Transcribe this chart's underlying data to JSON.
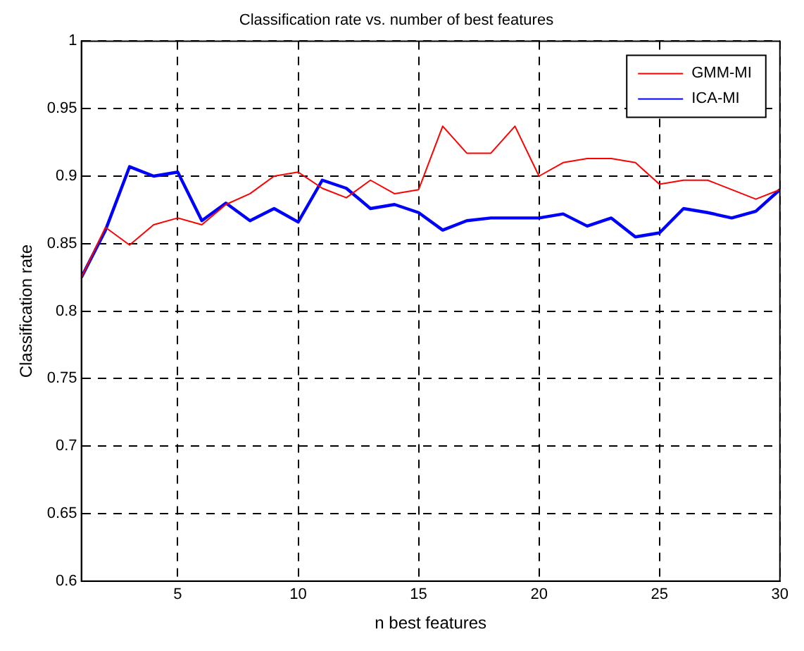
{
  "chart_data": {
    "type": "line",
    "title": "Classification rate vs. number of best features",
    "xlabel": "n best features",
    "ylabel": "Classification rate",
    "x": [
      1,
      2,
      3,
      4,
      5,
      6,
      7,
      8,
      9,
      10,
      11,
      12,
      13,
      14,
      15,
      16,
      17,
      18,
      19,
      20,
      21,
      22,
      23,
      24,
      25,
      26,
      27,
      28,
      29,
      30
    ],
    "series": [
      {
        "name": "GMM-MI",
        "color": "#ff0000",
        "values": [
          0.825,
          0.862,
          0.849,
          0.864,
          0.869,
          0.864,
          0.879,
          0.887,
          0.9,
          0.903,
          0.891,
          0.884,
          0.897,
          0.887,
          0.89,
          0.937,
          0.917,
          0.917,
          0.937,
          0.9,
          0.91,
          0.913,
          0.913,
          0.91,
          0.894,
          0.897,
          0.897,
          0.89,
          0.883,
          0.89
        ]
      },
      {
        "name": "ICA-MI",
        "color": "#0000ff",
        "values": [
          0.825,
          0.86,
          0.907,
          0.9,
          0.903,
          0.867,
          0.88,
          0.867,
          0.876,
          0.866,
          0.897,
          0.891,
          0.876,
          0.879,
          0.873,
          0.86,
          0.867,
          0.869,
          0.869,
          0.869,
          0.872,
          0.863,
          0.869,
          0.855,
          0.858,
          0.876,
          0.873,
          0.869,
          0.874,
          0.89
        ]
      }
    ],
    "xlim": [
      1,
      30
    ],
    "xticks": [
      5,
      10,
      15,
      20,
      25,
      30
    ],
    "ylim": [
      0.6,
      1
    ],
    "yticks": [
      0.6,
      0.65,
      0.7,
      0.75,
      0.8,
      0.85,
      0.9,
      0.95,
      1
    ],
    "grid": true,
    "legend": "top right",
    "marker": "none",
    "line_style": "solid"
  }
}
